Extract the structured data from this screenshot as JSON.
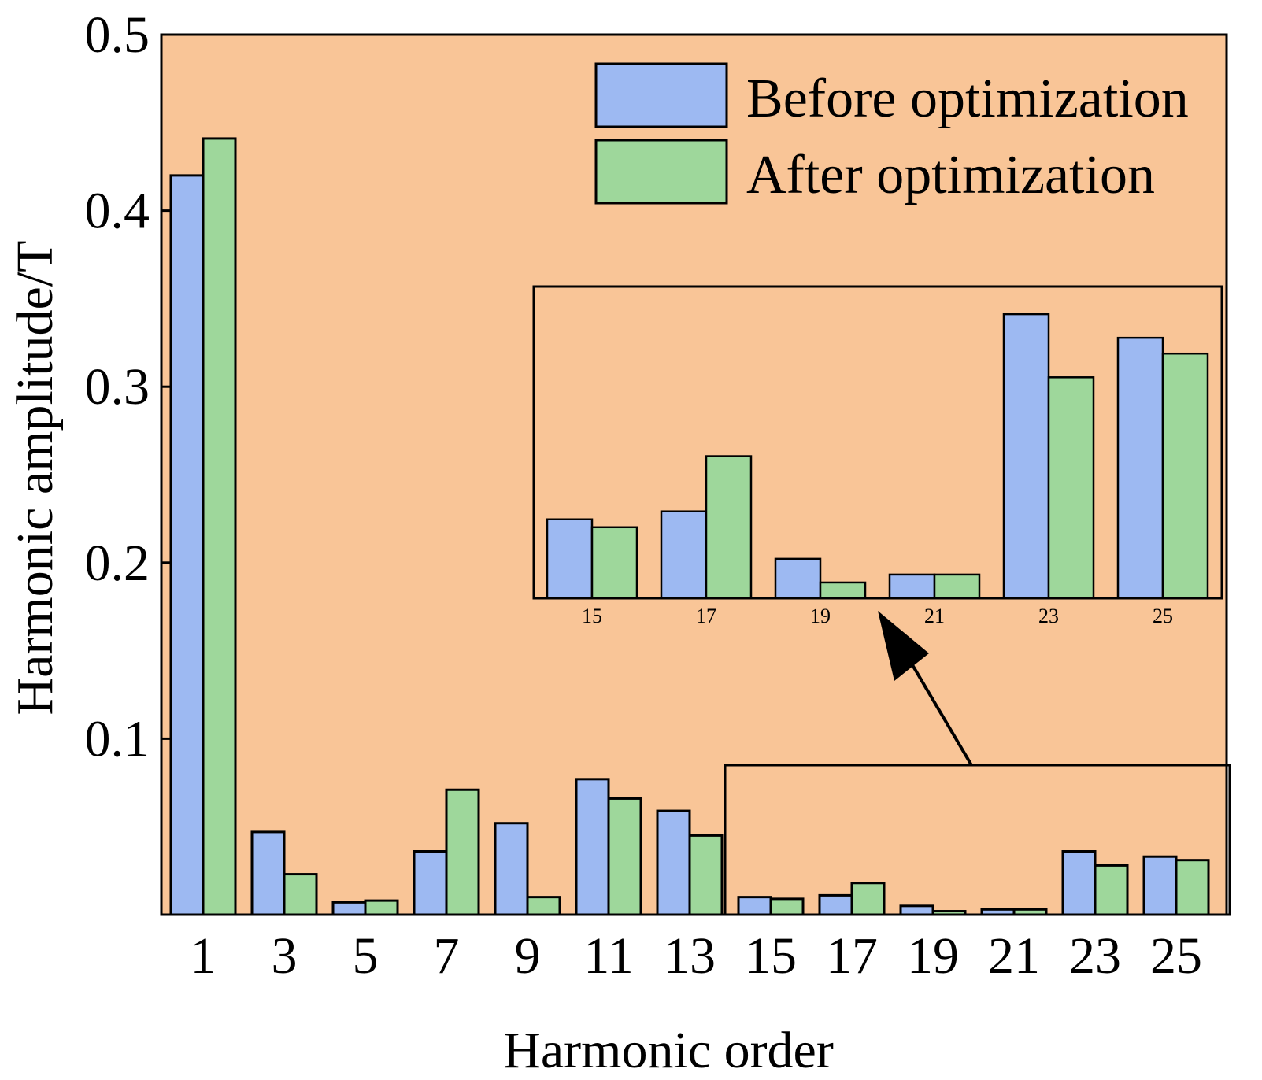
{
  "colors": {
    "plot_background": "#F9C597",
    "before": "#9DB9F2",
    "after": "#9ED79B",
    "outline": "#000000"
  },
  "chart_data": {
    "type": "bar",
    "xlabel": "Harmonic order",
    "ylabel": "Harmonic amplitude/T",
    "ylim": [
      0,
      0.5
    ],
    "yticks": [
      "0.1",
      "0.2",
      "0.3",
      "0.4",
      "0.5"
    ],
    "categories": [
      "1",
      "3",
      "5",
      "7",
      "9",
      "11",
      "13",
      "15",
      "17",
      "19",
      "21",
      "23",
      "25"
    ],
    "series": [
      {
        "name": "Before optimization",
        "values": [
          0.42,
          0.047,
          0.007,
          0.036,
          0.052,
          0.077,
          0.059,
          0.01,
          0.011,
          0.005,
          0.003,
          0.036,
          0.033
        ]
      },
      {
        "name": "After optimization",
        "values": [
          0.441,
          0.023,
          0.008,
          0.071,
          0.01,
          0.066,
          0.045,
          0.009,
          0.018,
          0.002,
          0.003,
          0.028,
          0.031
        ]
      }
    ],
    "legend_position": "top-right",
    "inset": {
      "categories": [
        "15",
        "17",
        "19",
        "21",
        "23",
        "25"
      ],
      "annotation": "zoomed view of orders 15–25"
    }
  }
}
